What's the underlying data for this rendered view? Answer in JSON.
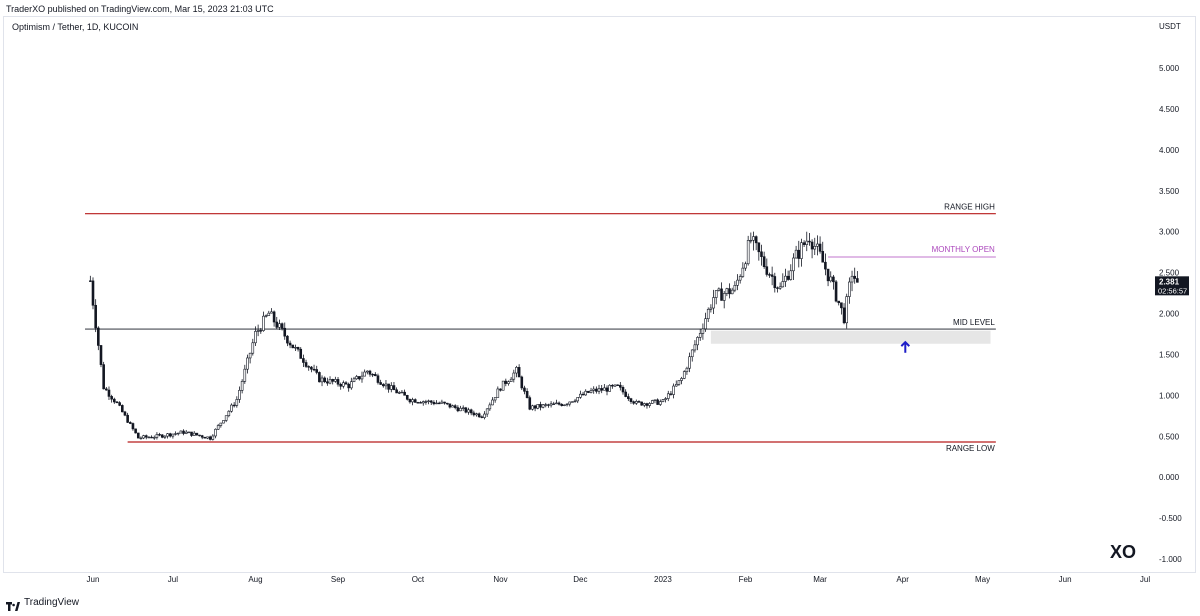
{
  "header": {
    "publish_line": "TraderXO published on TradingView.com, Mar 15, 2023 21:03 UTC",
    "symbol_line": "Optimism / Tether, 1D, KUCOIN"
  },
  "footer": {
    "logo_text": "TradingView",
    "logo_icon": "tradingview-logo-icon"
  },
  "watermark": "XO",
  "colors": {
    "range_line": "#b71c1c",
    "monthly_open": "#ab47bc",
    "mid_level": "#131722",
    "zone": "#e6e6e6",
    "arrow": "#1e1ec8",
    "candle": "#131722",
    "price_badge": "#131722"
  },
  "chart_data": {
    "type": "candlestick",
    "title": "Optimism / Tether, 1D, KUCOIN",
    "y_axis_unit": "USDT",
    "ylim": [
      -1.1,
      5.5
    ],
    "y_ticks": [
      "5.000",
      "4.500",
      "4.000",
      "3.500",
      "3.000",
      "2.500",
      "2.000",
      "1.500",
      "1.000",
      "0.500",
      "0.000",
      "-0.500",
      "-1.000"
    ],
    "y_tick_values": [
      5.0,
      4.5,
      4.0,
      3.5,
      3.0,
      2.5,
      2.0,
      1.5,
      1.0,
      0.5,
      0.0,
      -0.5,
      -1.0
    ],
    "x_ticks": [
      "Jun",
      "Jul",
      "Aug",
      "Sep",
      "Oct",
      "Nov",
      "Dec",
      "2023",
      "Feb",
      "Mar",
      "Apr",
      "May",
      "Jun",
      "Jul"
    ],
    "x_tick_dates": [
      "2022-06-01",
      "2022-07-01",
      "2022-08-01",
      "2022-09-01",
      "2022-10-01",
      "2022-11-01",
      "2022-12-01",
      "2023-01-01",
      "2023-02-01",
      "2023-03-01",
      "2023-04-01",
      "2023-05-01",
      "2023-06-01",
      "2023-07-01"
    ],
    "xlim": [
      "2022-05-26",
      "2023-07-31"
    ],
    "price_path": [
      {
        "date": "2022-05-31",
        "close": 2.4
      },
      {
        "date": "2022-06-05",
        "close": 1.1
      },
      {
        "date": "2022-06-10",
        "close": 0.9
      },
      {
        "date": "2022-06-18",
        "close": 0.48
      },
      {
        "date": "2022-06-25",
        "close": 0.5
      },
      {
        "date": "2022-07-05",
        "close": 0.55
      },
      {
        "date": "2022-07-15",
        "close": 0.48
      },
      {
        "date": "2022-07-25",
        "close": 0.95
      },
      {
        "date": "2022-08-01",
        "close": 1.75
      },
      {
        "date": "2022-08-06",
        "close": 2.0
      },
      {
        "date": "2022-08-15",
        "close": 1.6
      },
      {
        "date": "2022-08-25",
        "close": 1.2
      },
      {
        "date": "2022-09-05",
        "close": 1.12
      },
      {
        "date": "2022-09-12",
        "close": 1.3
      },
      {
        "date": "2022-09-20",
        "close": 1.1
      },
      {
        "date": "2022-09-28",
        "close": 0.95
      },
      {
        "date": "2022-10-10",
        "close": 0.9
      },
      {
        "date": "2022-10-25",
        "close": 0.75
      },
      {
        "date": "2022-11-01",
        "close": 1.1
      },
      {
        "date": "2022-11-07",
        "close": 1.3
      },
      {
        "date": "2022-11-12",
        "close": 0.85
      },
      {
        "date": "2022-11-25",
        "close": 0.9
      },
      {
        "date": "2022-12-05",
        "close": 1.05
      },
      {
        "date": "2022-12-15",
        "close": 1.1
      },
      {
        "date": "2022-12-22",
        "close": 0.9
      },
      {
        "date": "2023-01-01",
        "close": 0.92
      },
      {
        "date": "2023-01-08",
        "close": 1.2
      },
      {
        "date": "2023-01-14",
        "close": 1.7
      },
      {
        "date": "2023-01-20",
        "close": 2.2
      },
      {
        "date": "2023-01-28",
        "close": 2.3
      },
      {
        "date": "2023-02-03",
        "close": 2.9
      },
      {
        "date": "2023-02-08",
        "close": 2.6
      },
      {
        "date": "2023-02-14",
        "close": 2.3
      },
      {
        "date": "2023-02-20",
        "close": 2.7
      },
      {
        "date": "2023-02-25",
        "close": 2.95
      },
      {
        "date": "2023-03-01",
        "close": 2.7
      },
      {
        "date": "2023-03-05",
        "close": 2.4
      },
      {
        "date": "2023-03-10",
        "close": 1.95
      },
      {
        "date": "2023-03-13",
        "close": 2.5
      },
      {
        "date": "2023-03-15",
        "close": 2.381
      }
    ],
    "last_price": {
      "value": 2.381,
      "label": "2.381",
      "countdown": "02:56:57"
    },
    "levels": {
      "range_high": {
        "value": 3.22,
        "label": "RANGE HIGH",
        "from": "2022-05-29",
        "to": "2023-05-06"
      },
      "range_low": {
        "value": 0.43,
        "label": "RANGE LOW",
        "from": "2022-06-14",
        "to": "2023-05-06"
      },
      "mid_level": {
        "value": 1.81,
        "label": "MID LEVEL",
        "from": "2022-05-29",
        "to": "2023-05-06"
      },
      "monthly_open": {
        "value": 2.69,
        "label": "MONTHLY OPEN",
        "from": "2023-03-04",
        "to": "2023-05-06"
      }
    },
    "zone": {
      "top": 1.79,
      "bottom": 1.63,
      "from": "2023-01-19",
      "to": "2023-05-04"
    },
    "arrow": {
      "date": "2023-04-02",
      "tip": 1.65,
      "tail": 1.52,
      "direction": "up"
    }
  }
}
